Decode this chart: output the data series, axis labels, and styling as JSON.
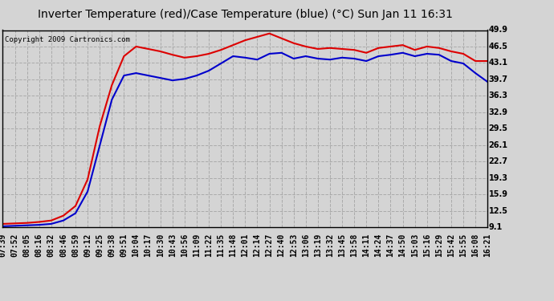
{
  "title": "Inverter Temperature (red)/Case Temperature (blue) (°C) Sun Jan 11 16:31",
  "copyright": "Copyright 2009 Cartronics.com",
  "yticks": [
    9.1,
    12.5,
    15.9,
    19.3,
    22.7,
    26.1,
    29.5,
    32.9,
    36.3,
    39.7,
    43.1,
    46.5,
    49.9
  ],
  "ylim": [
    9.1,
    49.9
  ],
  "xtick_labels": [
    "07:39",
    "07:52",
    "08:05",
    "08:16",
    "08:32",
    "08:46",
    "08:59",
    "09:12",
    "09:25",
    "09:38",
    "09:51",
    "10:04",
    "10:17",
    "10:30",
    "10:43",
    "10:56",
    "11:09",
    "11:22",
    "11:35",
    "11:48",
    "12:01",
    "12:14",
    "12:27",
    "12:40",
    "12:53",
    "13:06",
    "13:19",
    "13:32",
    "13:45",
    "13:58",
    "14:11",
    "14:24",
    "14:37",
    "14:50",
    "15:03",
    "15:16",
    "15:29",
    "15:42",
    "15:55",
    "16:08",
    "16:21"
  ],
  "red_data": [
    9.8,
    9.9,
    10.0,
    10.2,
    10.5,
    11.5,
    13.5,
    19.0,
    30.0,
    38.5,
    44.5,
    46.5,
    46.0,
    45.5,
    44.8,
    44.2,
    44.5,
    45.0,
    45.8,
    46.8,
    47.8,
    48.5,
    49.2,
    48.2,
    47.2,
    46.5,
    46.0,
    46.2,
    46.0,
    45.8,
    45.2,
    46.2,
    46.5,
    46.8,
    45.8,
    46.5,
    46.2,
    45.5,
    45.0,
    43.5,
    43.5
  ],
  "blue_data": [
    9.3,
    9.4,
    9.5,
    9.6,
    9.8,
    10.5,
    12.0,
    16.5,
    26.0,
    35.5,
    40.5,
    41.0,
    40.5,
    40.0,
    39.5,
    39.8,
    40.5,
    41.5,
    43.0,
    44.5,
    44.2,
    43.8,
    45.0,
    45.2,
    44.0,
    44.5,
    44.0,
    43.8,
    44.2,
    44.0,
    43.5,
    44.5,
    44.8,
    45.2,
    44.5,
    45.0,
    44.8,
    43.5,
    43.0,
    41.0,
    39.2
  ],
  "bg_color": "#d4d4d4",
  "plot_bg_color": "#d4d4d4",
  "grid_color": "#aaaaaa",
  "red_color": "#dd0000",
  "blue_color": "#0000cc",
  "title_fontsize": 10,
  "tick_fontsize": 7,
  "copyright_fontsize": 6.5
}
